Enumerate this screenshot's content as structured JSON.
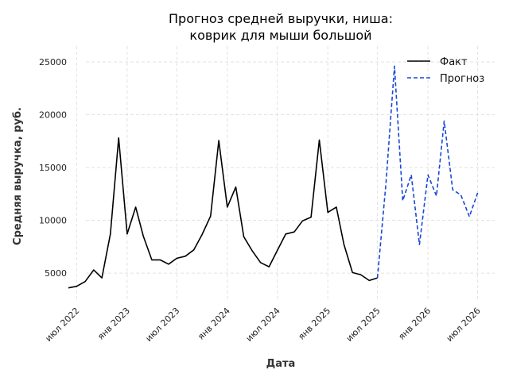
{
  "chart_data": {
    "type": "line",
    "title_lines": [
      "Прогноз средней выручки, ниша:",
      "коврик для мыши большой"
    ],
    "xlabel": "Дата",
    "ylabel": "Средняя выручка, руб.",
    "ylim": [
      2300,
      26500
    ],
    "yticks": [
      5000,
      10000,
      15000,
      20000,
      25000
    ],
    "xlim": [
      "2022-06-01",
      "2026-09-01"
    ],
    "xticks": [
      {
        "date": "2022-07-01",
        "label": "июл 2022"
      },
      {
        "date": "2023-01-01",
        "label": "янв 2023"
      },
      {
        "date": "2023-07-01",
        "label": "июл 2023"
      },
      {
        "date": "2024-01-01",
        "label": "янв 2024"
      },
      {
        "date": "2024-07-01",
        "label": "июл 2024"
      },
      {
        "date": "2025-01-01",
        "label": "янв 2025"
      },
      {
        "date": "2025-07-01",
        "label": "июл 2025"
      },
      {
        "date": "2026-01-01",
        "label": "янв 2026"
      },
      {
        "date": "2026-07-01",
        "label": "июл 2026"
      }
    ],
    "grid": true,
    "legend_position": "top-right",
    "series": [
      {
        "name": "Факт",
        "color": "#000000",
        "style": "solid",
        "points": [
          [
            "2022-06-01",
            3600
          ],
          [
            "2022-07-01",
            3750
          ],
          [
            "2022-08-01",
            4200
          ],
          [
            "2022-09-01",
            5300
          ],
          [
            "2022-10-01",
            4550
          ],
          [
            "2022-11-01",
            8700
          ],
          [
            "2022-12-01",
            17800
          ],
          [
            "2023-01-01",
            8700
          ],
          [
            "2023-02-01",
            11250
          ],
          [
            "2023-03-01",
            8500
          ],
          [
            "2023-04-01",
            6250
          ],
          [
            "2023-05-01",
            6250
          ],
          [
            "2023-06-01",
            5850
          ],
          [
            "2023-07-01",
            6400
          ],
          [
            "2023-08-01",
            6600
          ],
          [
            "2023-09-01",
            7200
          ],
          [
            "2023-10-01",
            8650
          ],
          [
            "2023-11-01",
            10400
          ],
          [
            "2023-12-01",
            17550
          ],
          [
            "2024-01-01",
            11250
          ],
          [
            "2024-02-01",
            13150
          ],
          [
            "2024-03-01",
            8450
          ],
          [
            "2024-04-01",
            7100
          ],
          [
            "2024-05-01",
            6000
          ],
          [
            "2024-06-01",
            5600
          ],
          [
            "2024-07-01",
            7150
          ],
          [
            "2024-08-01",
            8700
          ],
          [
            "2024-09-01",
            8900
          ],
          [
            "2024-10-01",
            9950
          ],
          [
            "2024-11-01",
            10300
          ],
          [
            "2024-12-01",
            17600
          ],
          [
            "2025-01-01",
            10750
          ],
          [
            "2025-02-01",
            11250
          ],
          [
            "2025-03-01",
            7700
          ],
          [
            "2025-04-01",
            5050
          ],
          [
            "2025-05-01",
            4850
          ],
          [
            "2025-06-01",
            4300
          ],
          [
            "2025-07-01",
            4550
          ]
        ]
      },
      {
        "name": "Прогноз",
        "color": "#1a47d6",
        "style": "dashed",
        "points": [
          [
            "2025-07-01",
            4550
          ],
          [
            "2025-08-01",
            13500
          ],
          [
            "2025-09-01",
            24600
          ],
          [
            "2025-10-01",
            11850
          ],
          [
            "2025-11-01",
            14300
          ],
          [
            "2025-12-01",
            7700
          ],
          [
            "2026-01-01",
            14300
          ],
          [
            "2026-02-01",
            12300
          ],
          [
            "2026-03-01",
            19400
          ],
          [
            "2026-04-01",
            12900
          ],
          [
            "2026-05-01",
            12400
          ],
          [
            "2026-06-01",
            10350
          ],
          [
            "2026-07-01",
            12600
          ]
        ]
      }
    ]
  }
}
